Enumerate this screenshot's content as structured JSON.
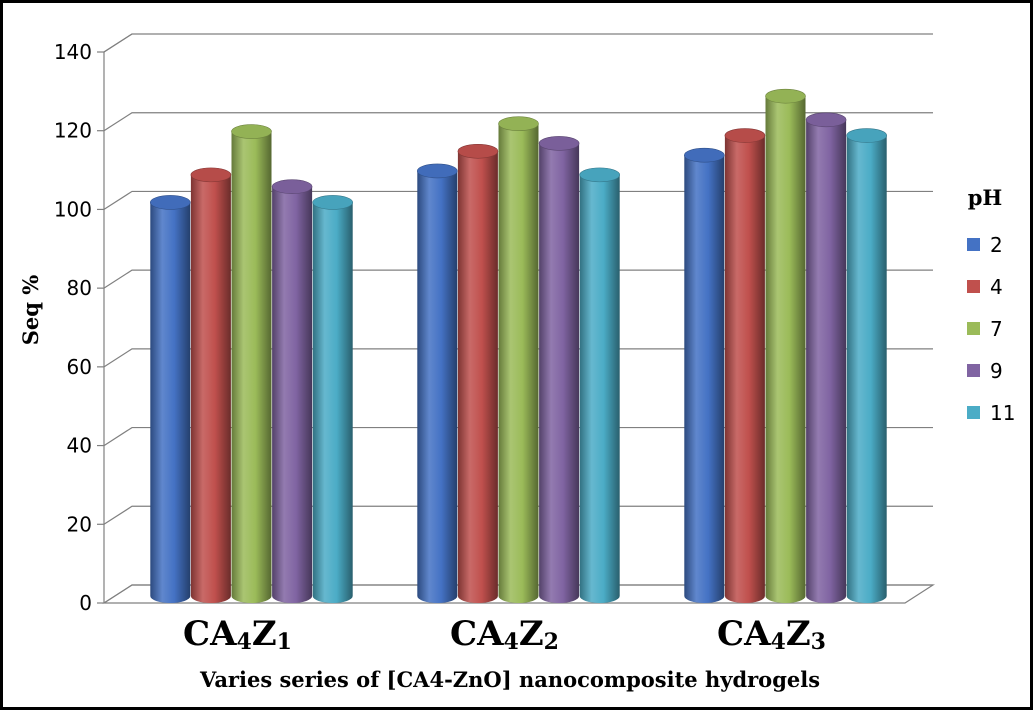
{
  "chart_data": {
    "type": "bar",
    "title": "",
    "xlabel": "Varies series of [CA4-ZnO] nanocomposite hydrogels",
    "ylabel": "Seq %",
    "ylim": [
      0,
      140
    ],
    "yticks": [
      0,
      20,
      40,
      60,
      80,
      100,
      120,
      140
    ],
    "categories": [
      {
        "main": "CA",
        "sub1": "4",
        "mid": "Z",
        "sub2": "1"
      },
      {
        "main": "CA",
        "sub1": "4",
        "mid": "Z",
        "sub2": "2"
      },
      {
        "main": "CA",
        "sub1": "4",
        "mid": "Z",
        "sub2": "3"
      }
    ],
    "legend": {
      "title": "pH",
      "position": "right"
    },
    "grid": true,
    "series": [
      {
        "name": "2",
        "color": "#4472C4",
        "values": [
          100,
          108,
          112
        ]
      },
      {
        "name": "4",
        "color": "#C0504D",
        "values": [
          107,
          113,
          117
        ]
      },
      {
        "name": "7",
        "color": "#9BBB59",
        "values": [
          118,
          120,
          127
        ]
      },
      {
        "name": "9",
        "color": "#8064A2",
        "values": [
          104,
          115,
          121
        ]
      },
      {
        "name": "11",
        "color": "#4BACC6",
        "values": [
          100,
          107,
          117
        ]
      }
    ]
  }
}
